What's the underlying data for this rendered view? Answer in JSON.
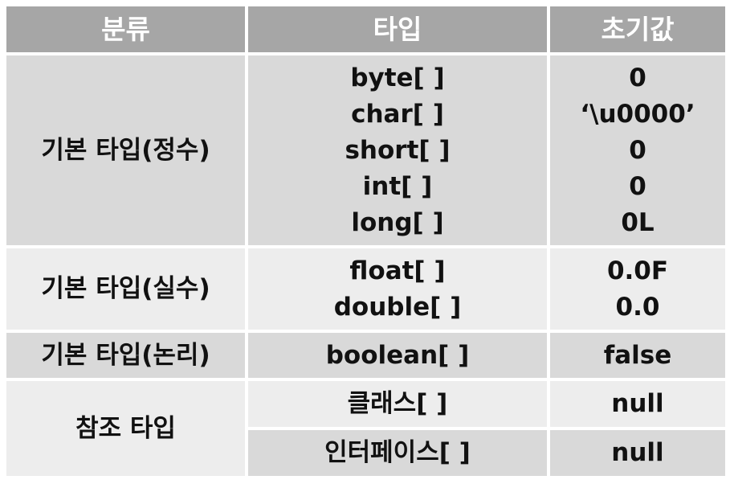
{
  "headers": {
    "category": "분류",
    "type": "타입",
    "initial": "초기값"
  },
  "rows": [
    {
      "category": "기본 타입(정수)",
      "types": [
        "byte[ ]",
        "char[ ]",
        "short[ ]",
        "int[ ]",
        "long[ ]"
      ],
      "initials": [
        "0",
        "‘\\u0000’",
        "0",
        "0",
        "0L"
      ]
    },
    {
      "category": "기본 타입(실수)",
      "types": [
        "float[ ]",
        "double[ ]"
      ],
      "initials": [
        "0.0F",
        "0.0"
      ]
    },
    {
      "category": "기본 타입(논리)",
      "types": [
        "boolean[ ]"
      ],
      "initials": [
        "false"
      ]
    },
    {
      "category": "참조 타입",
      "types": [
        "클래스[ ]",
        "인터페이스[ ]"
      ],
      "initials": [
        "null",
        "null"
      ]
    }
  ]
}
